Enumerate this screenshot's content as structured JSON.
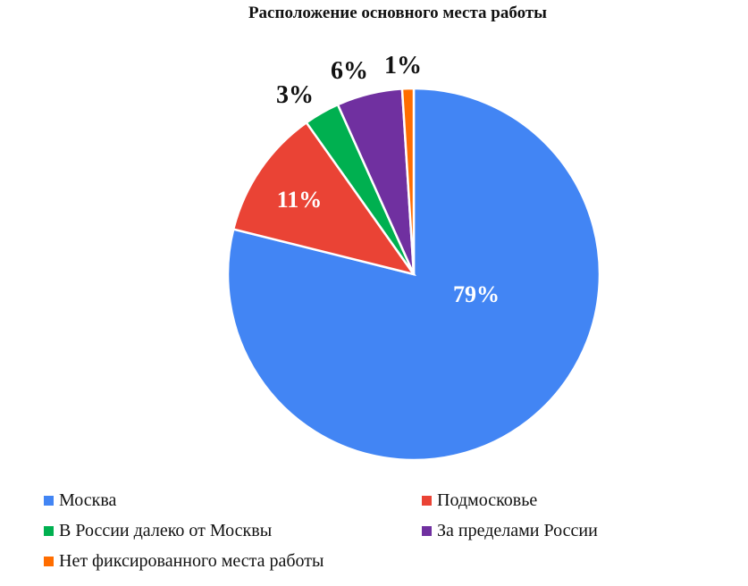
{
  "chart_data": {
    "type": "pie",
    "title": "Расположение основного места работы",
    "categories": [
      "Москва",
      "Подмосковье",
      "В России далеко от Москвы",
      "За пределами России",
      "Нет фиксированного места работы"
    ],
    "values": [
      79,
      11,
      3,
      6,
      1
    ],
    "labels": [
      "79%",
      "11%",
      "3%",
      "6%",
      "1%"
    ],
    "colors": [
      "#4285F4",
      "#EA4335",
      "#00B050",
      "#7030A0",
      "#FF6D00"
    ],
    "legend_position": "bottom"
  },
  "title": "Расположение основного места работы",
  "legend": [
    {
      "label": "Москва",
      "color": "#4285F4"
    },
    {
      "label": "Подмосковье",
      "color": "#EA4335"
    },
    {
      "label": "В России далеко от Москвы",
      "color": "#00B050"
    },
    {
      "label": "За пределами России",
      "color": "#7030A0"
    },
    {
      "label": "Нет фиксированного места работы",
      "color": "#FF6D00"
    }
  ]
}
